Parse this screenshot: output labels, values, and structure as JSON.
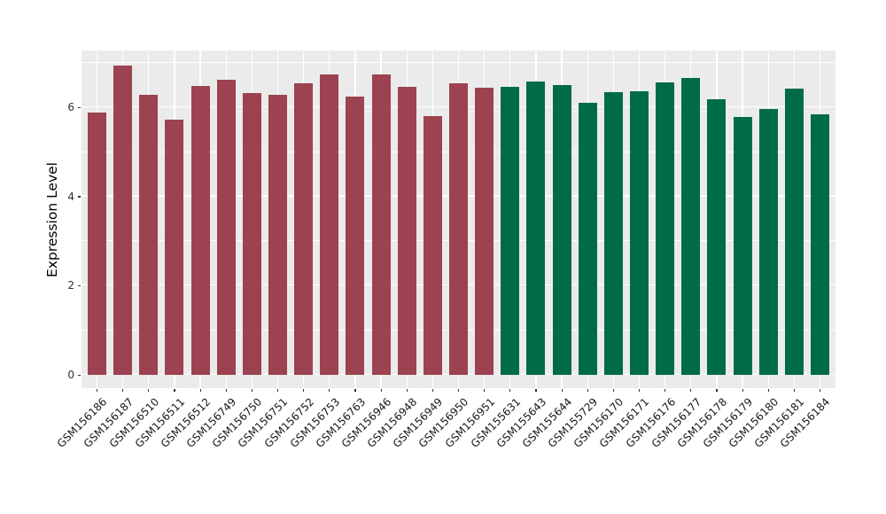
{
  "chart_data": {
    "type": "bar",
    "title": "",
    "xlabel": "",
    "ylabel": "Expression Level",
    "ylim": [
      0,
      7.28
    ],
    "yticks": [
      0,
      2,
      4,
      6
    ],
    "grid": "on",
    "legend_position": "none",
    "panel_bg": "#EBEBEB",
    "grid_color": "#FFFFFF",
    "categories": [
      "GSM156186",
      "GSM156187",
      "GSM156510",
      "GSM156511",
      "GSM156512",
      "GSM156749",
      "GSM156750",
      "GSM156751",
      "GSM156752",
      "GSM156753",
      "GSM156763",
      "GSM156946",
      "GSM156948",
      "GSM156949",
      "GSM156950",
      "GSM156951",
      "GSM155631",
      "GSM155643",
      "GSM155644",
      "GSM155729",
      "GSM156170",
      "GSM156171",
      "GSM156176",
      "GSM156177",
      "GSM156178",
      "GSM156179",
      "GSM156180",
      "GSM156181",
      "GSM156184"
    ],
    "values": [
      5.88,
      6.95,
      6.29,
      5.73,
      6.48,
      6.62,
      6.33,
      6.28,
      6.55,
      6.74,
      6.24,
      6.74,
      6.47,
      5.81,
      6.54,
      6.44,
      6.47,
      6.59,
      6.5,
      6.11,
      6.34,
      6.37,
      6.57,
      6.67,
      6.18,
      5.78,
      5.96,
      6.43,
      5.84
    ],
    "bar_groups": [
      "group1",
      "group1",
      "group1",
      "group1",
      "group1",
      "group1",
      "group1",
      "group1",
      "group1",
      "group1",
      "group1",
      "group1",
      "group1",
      "group1",
      "group1",
      "group1",
      "group2",
      "group2",
      "group2",
      "group2",
      "group2",
      "group2",
      "group2",
      "group2",
      "group2",
      "group2",
      "group2",
      "group2",
      "group2"
    ],
    "group_colors": {
      "group1": "#9C4250",
      "group2": "#006B49"
    }
  }
}
